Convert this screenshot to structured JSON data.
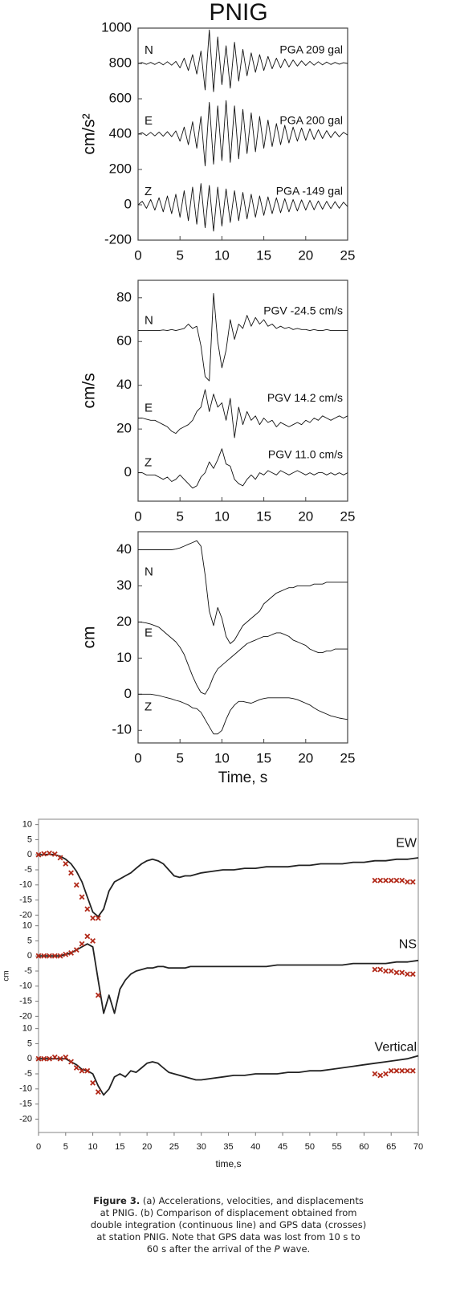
{
  "chart_data": [
    {
      "type": "line",
      "title": "PNIG",
      "ylabel": "cm/s²",
      "xlim": [
        0,
        25
      ],
      "xticks": [
        0,
        5,
        10,
        15,
        20,
        25
      ],
      "ylim": [
        -200,
        1000
      ],
      "yticks": [
        -200,
        0,
        200,
        400,
        600,
        800,
        1000
      ],
      "x": [
        0,
        0.5,
        1,
        1.5,
        2,
        2.5,
        3,
        3.5,
        4,
        4.5,
        5,
        5.5,
        6,
        6.5,
        7,
        7.5,
        8,
        8.5,
        9,
        9.5,
        10,
        10.5,
        11,
        11.5,
        12,
        12.5,
        13,
        13.5,
        14,
        14.5,
        15,
        15.5,
        16,
        16.5,
        17,
        17.5,
        18,
        18.5,
        19,
        19.5,
        20,
        20.5,
        21,
        21.5,
        22,
        22.5,
        23,
        23.5,
        24,
        24.5,
        25
      ],
      "series": [
        {
          "name": "N",
          "label": "PGA 209 gal",
          "color": "#111111",
          "values": [
            800,
            805,
            795,
            806,
            794,
            808,
            792,
            810,
            790,
            812,
            775,
            830,
            760,
            850,
            740,
            870,
            650,
            990,
            640,
            950,
            680,
            900,
            660,
            920,
            700,
            880,
            730,
            860,
            750,
            850,
            760,
            840,
            770,
            830,
            775,
            825,
            780,
            820,
            785,
            815,
            788,
            812,
            790,
            810,
            792,
            808,
            794,
            806,
            796,
            804,
            800
          ]
        },
        {
          "name": "E",
          "label": "PGA 200 gal",
          "color": "#111111",
          "values": [
            400,
            408,
            392,
            410,
            390,
            412,
            388,
            414,
            386,
            418,
            360,
            440,
            340,
            470,
            320,
            500,
            220,
            580,
            230,
            560,
            250,
            590,
            240,
            560,
            260,
            540,
            290,
            520,
            300,
            500,
            320,
            480,
            330,
            460,
            340,
            450,
            350,
            440,
            360,
            435,
            365,
            430,
            370,
            425,
            375,
            420,
            380,
            415,
            385,
            410,
            395
          ]
        },
        {
          "name": "Z",
          "label": "PGA -149 gal",
          "color": "#111111",
          "values": [
            0,
            20,
            -20,
            30,
            -30,
            40,
            -40,
            50,
            -50,
            60,
            -70,
            80,
            -90,
            100,
            -110,
            120,
            -130,
            110,
            -149,
            100,
            -120,
            90,
            -100,
            80,
            -90,
            70,
            -80,
            60,
            -70,
            50,
            -60,
            45,
            -50,
            40,
            -45,
            35,
            -40,
            30,
            -35,
            28,
            -30,
            25,
            -28,
            22,
            -25,
            20,
            -22,
            18,
            -20,
            15,
            -10
          ]
        }
      ]
    },
    {
      "type": "line",
      "ylabel": "cm/s",
      "xlim": [
        0,
        25
      ],
      "xticks": [
        0,
        5,
        10,
        15,
        20,
        25
      ],
      "ylim": [
        -13,
        88
      ],
      "yticks": [
        0,
        20,
        40,
        60,
        80
      ],
      "x": [
        0,
        0.5,
        1,
        1.5,
        2,
        2.5,
        3,
        3.5,
        4,
        4.5,
        5,
        5.5,
        6,
        6.5,
        7,
        7.5,
        8,
        8.5,
        9,
        9.5,
        10,
        10.5,
        11,
        11.5,
        12,
        12.5,
        13,
        13.5,
        14,
        14.5,
        15,
        15.5,
        16,
        16.5,
        17,
        17.5,
        18,
        18.5,
        19,
        19.5,
        20,
        20.5,
        21,
        21.5,
        22,
        22.5,
        23,
        23.5,
        24,
        24.5,
        25
      ],
      "series": [
        {
          "name": "N",
          "label": "PGV -24.5 cm/s",
          "color": "#111111",
          "values": [
            65,
            65,
            65,
            65,
            65,
            65,
            65.3,
            65,
            65.5,
            65,
            65.5,
            66,
            68,
            66,
            67,
            58,
            44,
            42,
            82,
            60,
            48,
            56,
            70,
            61,
            68,
            66,
            72,
            67,
            71,
            68,
            70,
            67,
            68,
            66,
            67,
            66,
            66.5,
            65.5,
            66,
            65.5,
            65.5,
            65,
            65.5,
            65,
            65,
            65.5,
            65,
            65,
            65,
            65,
            65
          ]
        },
        {
          "name": "E",
          "label": "PGV 14.2 cm/s",
          "color": "#111111",
          "values": [
            25,
            25,
            24.5,
            24,
            24,
            23,
            22,
            21,
            19,
            18,
            20,
            21,
            22,
            24,
            28,
            30,
            38,
            28,
            36,
            30,
            32,
            24,
            34,
            16,
            30,
            22,
            28,
            24,
            26,
            22,
            25,
            23,
            24,
            21,
            23,
            22,
            21,
            22,
            23,
            22,
            24,
            23,
            25,
            24,
            26,
            25,
            24,
            25,
            26,
            25,
            26
          ]
        },
        {
          "name": "Z",
          "label": "PGV 11.0 cm/s",
          "color": "#111111",
          "values": [
            0,
            0,
            -1,
            -1,
            -1,
            -2,
            -3,
            -2,
            -4,
            -3,
            -1,
            -3,
            -5,
            -7,
            -6,
            -2,
            0,
            5,
            2,
            6,
            11,
            4,
            3,
            -3,
            -5,
            -6,
            -3,
            -1,
            -3,
            0,
            -1,
            1,
            0,
            -1,
            1,
            0,
            -1,
            0,
            1,
            0,
            -1,
            0,
            -1,
            0,
            0,
            -1,
            0,
            -1,
            0,
            -1,
            0
          ]
        }
      ]
    },
    {
      "type": "line",
      "ylabel": "cm",
      "xlabel": "Time, s",
      "xlim": [
        0,
        25
      ],
      "xticks": [
        0,
        5,
        10,
        15,
        20,
        25
      ],
      "ylim": [
        -13.5,
        45
      ],
      "yticks": [
        -10,
        0,
        10,
        20,
        30,
        40
      ],
      "x": [
        0,
        0.5,
        1,
        1.5,
        2,
        2.5,
        3,
        3.5,
        4,
        4.5,
        5,
        5.5,
        6,
        6.5,
        7,
        7.5,
        8,
        8.5,
        9,
        9.5,
        10,
        10.5,
        11,
        11.5,
        12,
        12.5,
        13,
        13.5,
        14,
        14.5,
        15,
        15.5,
        16,
        16.5,
        17,
        17.5,
        18,
        18.5,
        19,
        19.5,
        20,
        20.5,
        21,
        21.5,
        22,
        22.5,
        23,
        23.5,
        24,
        24.5,
        25
      ],
      "series": [
        {
          "name": "N",
          "color": "#111111",
          "values": [
            40,
            40,
            40,
            40,
            40,
            40,
            40,
            40,
            40,
            40.2,
            40.5,
            41,
            41.5,
            42,
            42.5,
            41,
            33,
            23,
            19,
            24,
            21,
            16,
            14,
            15,
            17,
            19,
            20,
            21,
            22,
            23,
            25,
            26,
            27,
            28,
            28.5,
            29,
            29.5,
            29.5,
            30,
            30,
            30,
            30,
            30.5,
            30.5,
            30.5,
            31,
            31,
            31,
            31,
            31,
            31
          ]
        },
        {
          "name": "E",
          "color": "#111111",
          "values": [
            20,
            19.9,
            19.7,
            19.4,
            19,
            18.5,
            17.5,
            16.5,
            15.5,
            14.5,
            13,
            11,
            8,
            5,
            2.5,
            0.5,
            0,
            2,
            5,
            7,
            8,
            9,
            10,
            11,
            12,
            13,
            14,
            14.5,
            15,
            15.5,
            16,
            16,
            16.5,
            17,
            17,
            16.5,
            16,
            15,
            14.5,
            14,
            13.5,
            12.5,
            12,
            11.5,
            11.5,
            12,
            12,
            12.5,
            12.5,
            12.5,
            12.5
          ]
        },
        {
          "name": "Z",
          "color": "#111111",
          "values": [
            0,
            0,
            0,
            0,
            -0.2,
            -0.4,
            -0.7,
            -1,
            -1.3,
            -1.7,
            -2,
            -2.5,
            -3,
            -3.8,
            -4,
            -5,
            -7,
            -9,
            -11,
            -11,
            -10,
            -7,
            -4.5,
            -3,
            -2,
            -2,
            -2.3,
            -2.5,
            -2,
            -1.5,
            -1.2,
            -1,
            -1,
            -1,
            -1,
            -1,
            -1,
            -1.2,
            -1.5,
            -2,
            -2.5,
            -3,
            -3.8,
            -4.5,
            -5,
            -5.5,
            -6,
            -6.3,
            -6.6,
            -6.8,
            -7
          ]
        }
      ]
    },
    {
      "type": "line",
      "ylabel": "cm",
      "xlabel": "time,s",
      "xlim": [
        0,
        70
      ],
      "xticks": [
        0,
        5,
        10,
        15,
        20,
        25,
        30,
        35,
        40,
        45,
        50,
        55,
        60,
        65,
        70
      ],
      "x": [
        0,
        1,
        2,
        3,
        4,
        5,
        6,
        7,
        8,
        9,
        10,
        11,
        12,
        13,
        14,
        15,
        16,
        17,
        18,
        19,
        20,
        21,
        22,
        23,
        24,
        25,
        26,
        27,
        28,
        29,
        30,
        32,
        34,
        36,
        38,
        40,
        42,
        44,
        46,
        48,
        50,
        52,
        54,
        56,
        58,
        60,
        62,
        64,
        66,
        68,
        70
      ],
      "gps_x": [
        0,
        1,
        2,
        3,
        4,
        5,
        6,
        7,
        8,
        9,
        10,
        11,
        62,
        63,
        64,
        65,
        66,
        67,
        68,
        69
      ],
      "series": [
        {
          "name": "EW",
          "color": "#222222",
          "gps_color": "#b22a1a",
          "ylim": [
            -21.5,
            11.5
          ],
          "yticks": [
            -20,
            -15,
            -10,
            -5,
            0,
            5,
            10
          ],
          "values": [
            0,
            0,
            0.2,
            0,
            -0.5,
            -1.5,
            -3,
            -5.5,
            -9,
            -14,
            -19,
            -20.5,
            -18,
            -12,
            -9,
            -8,
            -7,
            -6,
            -4.5,
            -3,
            -2,
            -1.5,
            -2,
            -3,
            -5,
            -7,
            -7.5,
            -7,
            -7,
            -6.5,
            -6,
            -5.5,
            -5,
            -5,
            -4.5,
            -4.5,
            -4,
            -4,
            -4,
            -3.5,
            -3.5,
            -3,
            -3,
            -3,
            -2.5,
            -2.5,
            -2,
            -2,
            -1.5,
            -1.5,
            -1
          ],
          "gps_values": [
            0,
            0.3,
            0.5,
            0.2,
            -1,
            -3,
            -6,
            -10,
            -14,
            -18,
            -21,
            -21,
            -8.5,
            -8.5,
            -8.5,
            -8.5,
            -8.5,
            -8.5,
            -9,
            -9
          ]
        },
        {
          "name": "NS",
          "color": "#222222",
          "gps_color": "#b22a1a",
          "ylim": [
            -21.5,
            11.5
          ],
          "yticks": [
            -20,
            -15,
            -10,
            -5,
            0,
            5,
            10
          ],
          "values": [
            0,
            0,
            0,
            0,
            0,
            0.5,
            1,
            2,
            3,
            4,
            3,
            -8,
            -19,
            -13,
            -19,
            -11,
            -8,
            -6,
            -5,
            -4.5,
            -4,
            -4,
            -3.5,
            -3.5,
            -4,
            -4,
            -4,
            -4,
            -3.5,
            -3.5,
            -3.5,
            -3.5,
            -3.5,
            -3.5,
            -3.5,
            -3.5,
            -3.5,
            -3,
            -3,
            -3,
            -3,
            -3,
            -3,
            -3,
            -2.5,
            -2.5,
            -2.5,
            -2.5,
            -2,
            -2,
            -1.5
          ],
          "gps_values": [
            0,
            0,
            0,
            0,
            0,
            0.5,
            1,
            2,
            4,
            6.5,
            5,
            -13,
            -4.5,
            -4.5,
            -5,
            -5,
            -5.5,
            -5.5,
            -6,
            -6
          ]
        },
        {
          "name": "Vertical",
          "color": "#222222",
          "gps_color": "#b22a1a",
          "ylim": [
            -21.5,
            11.5
          ],
          "yticks": [
            -20,
            -15,
            -10,
            -5,
            0,
            5,
            10
          ],
          "values": [
            0,
            0,
            0,
            0,
            0,
            0,
            -1,
            -2,
            -3.5,
            -4,
            -5,
            -9,
            -12,
            -10,
            -6,
            -5,
            -6,
            -4,
            -4.5,
            -3,
            -1.5,
            -1,
            -1.5,
            -3,
            -4.5,
            -5,
            -5.5,
            -6,
            -6.5,
            -7,
            -7,
            -6.5,
            -6,
            -5.5,
            -5.5,
            -5,
            -5,
            -5,
            -4.5,
            -4.5,
            -4,
            -4,
            -3.5,
            -3,
            -2.5,
            -2,
            -1.5,
            -1,
            -0.5,
            0,
            1
          ],
          "gps_values": [
            0,
            0,
            0,
            0.5,
            0,
            0.5,
            -1,
            -3,
            -4,
            -4,
            -8,
            -11,
            -5,
            -5.5,
            -5,
            -4,
            -4,
            -4,
            -4,
            -4
          ]
        }
      ]
    }
  ],
  "caption": {
    "label": "Figure 3.",
    "text": "(a) Accelerations, velocities, and displacements at PNIG. (b) Comparison of displacement obtained from double integration (continuous line) and GPS data (crosses) at station PNIG. Note that GPS data was lost from 10 s to 60 s after the arrival of the ",
    "italic": "P",
    "end": " wave."
  }
}
